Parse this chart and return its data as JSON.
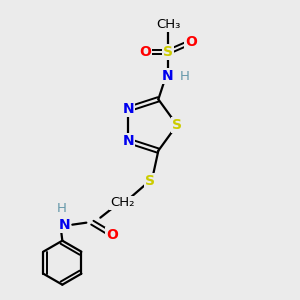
{
  "background_color": "#ebebeb",
  "bond_color": "#000000",
  "atom_colors": {
    "S": "#cccc00",
    "N": "#0000ee",
    "O": "#ff0000",
    "H": "#6699aa",
    "C": "#000000"
  },
  "font_size_atom": 10,
  "font_size_small": 8.5
}
